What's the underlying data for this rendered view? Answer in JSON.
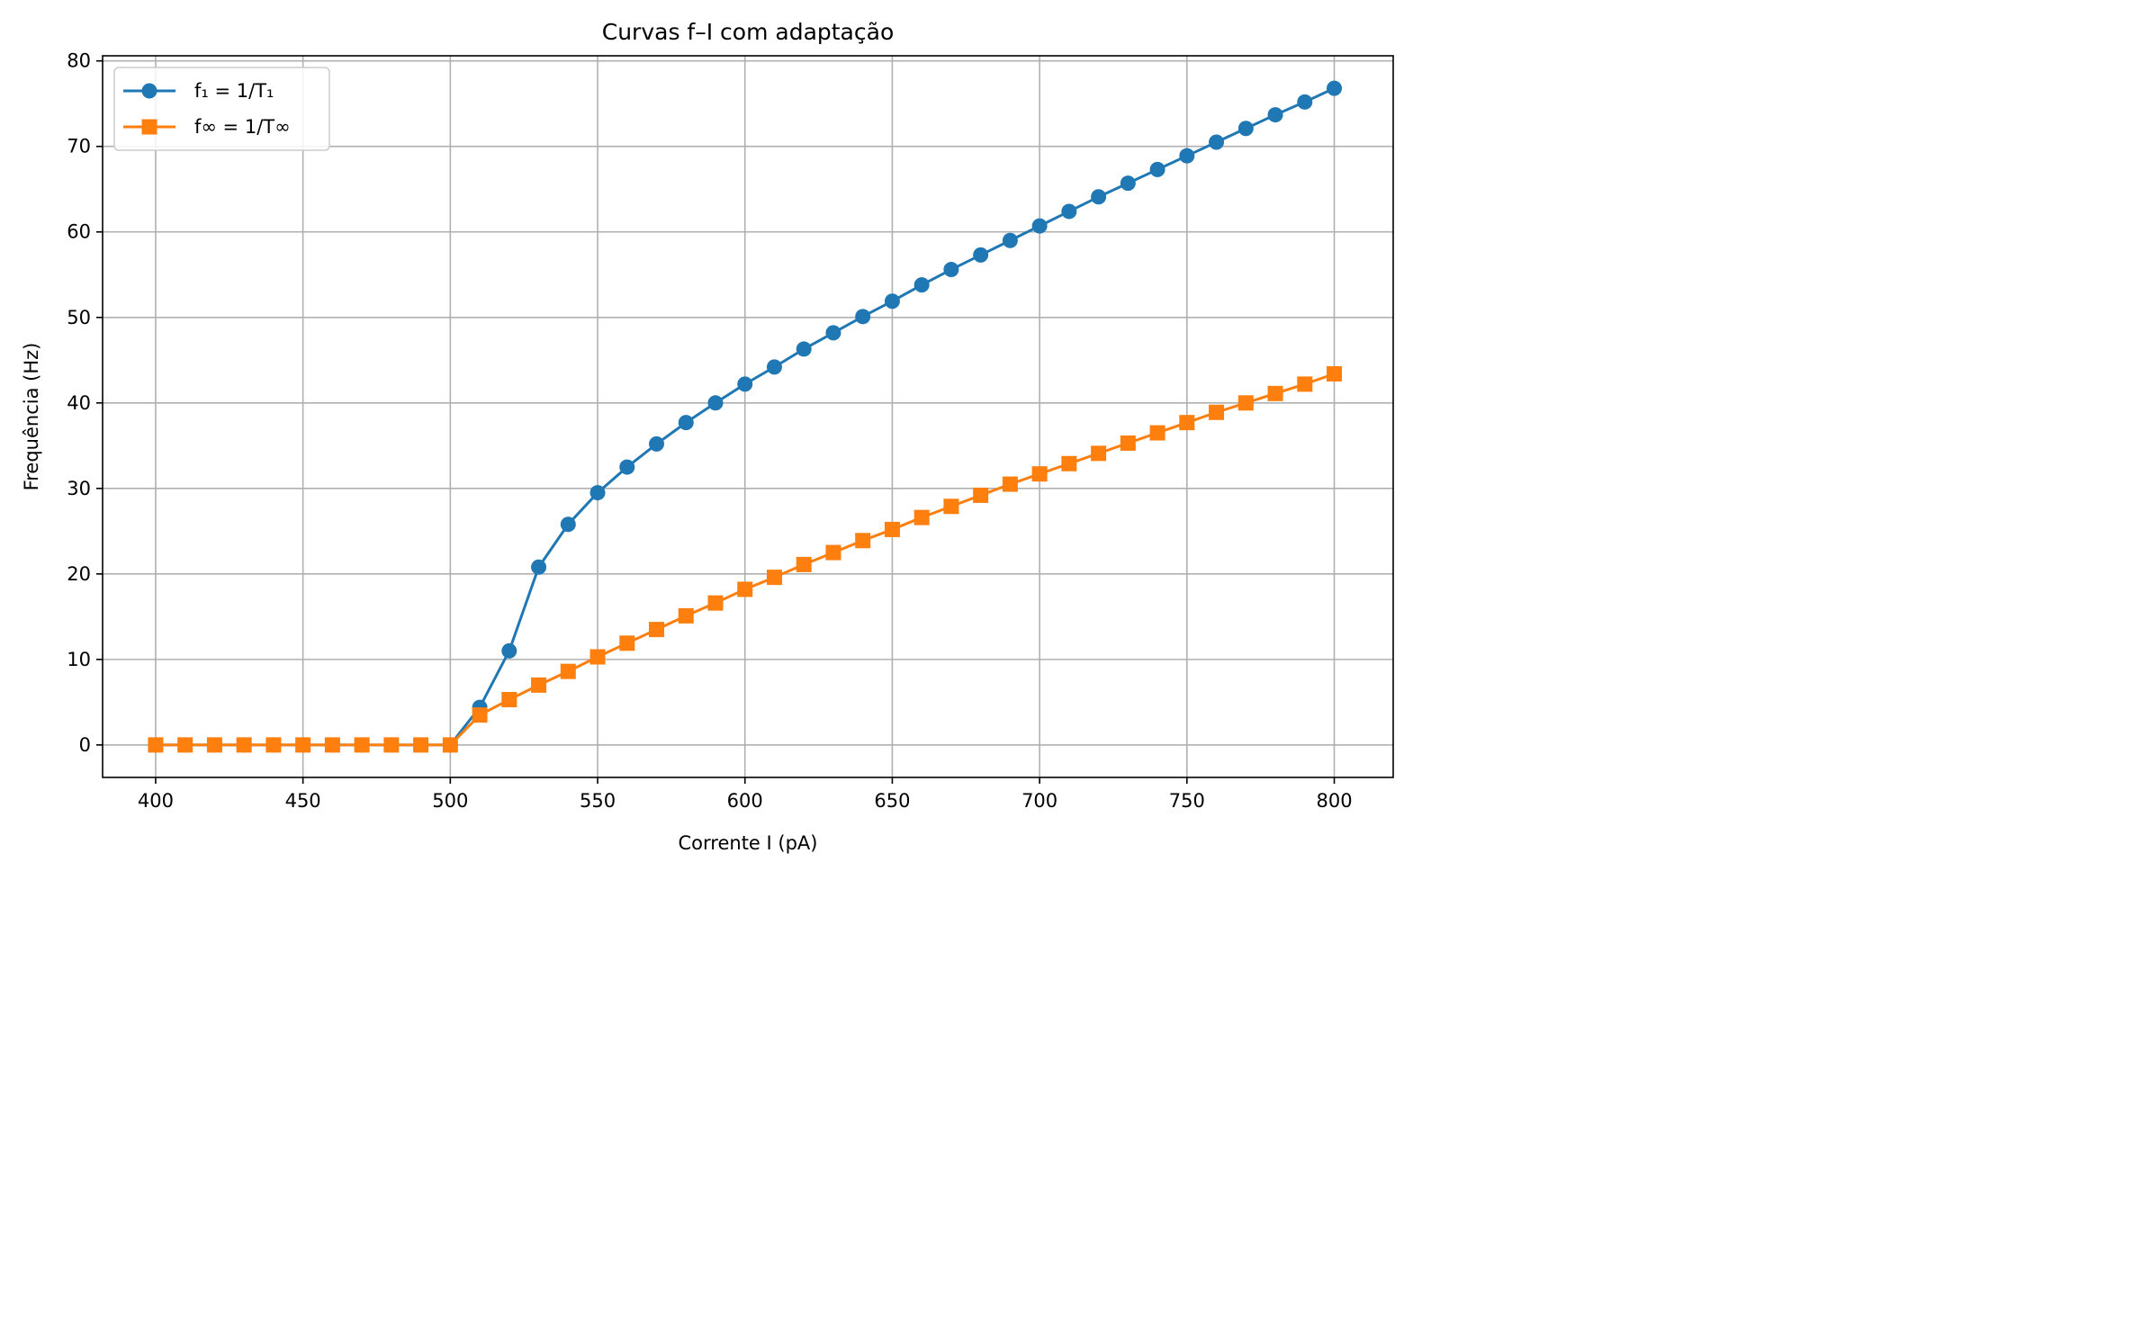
{
  "chart_data": {
    "type": "line",
    "title": "Curvas f–I com adaptação",
    "xlabel": "Corrente I (pA)",
    "ylabel": "Frequência (Hz)",
    "xlim": [
      382,
      820
    ],
    "ylim": [
      -3.8,
      80.6
    ],
    "xticks": [
      400,
      450,
      500,
      550,
      600,
      650,
      700,
      750,
      800
    ],
    "yticks": [
      0,
      10,
      20,
      30,
      40,
      50,
      60,
      70,
      80
    ],
    "grid": true,
    "legend_position": "top-left",
    "x": [
      400,
      410,
      420,
      430,
      440,
      450,
      460,
      470,
      480,
      490,
      500,
      510,
      520,
      530,
      540,
      550,
      560,
      570,
      580,
      590,
      600,
      610,
      620,
      630,
      640,
      650,
      660,
      670,
      680,
      690,
      700,
      710,
      720,
      730,
      740,
      750,
      760,
      770,
      780,
      790,
      800
    ],
    "series": [
      {
        "name": "f₁ = 1/T₁",
        "color": "#1f77b4",
        "marker": "circle",
        "values": [
          0,
          0,
          0,
          0,
          0,
          0,
          0,
          0,
          0,
          0,
          0,
          4.4,
          11.0,
          20.8,
          25.8,
          29.5,
          32.5,
          35.2,
          37.7,
          40.0,
          42.2,
          44.2,
          46.3,
          48.2,
          50.1,
          51.9,
          53.8,
          55.6,
          57.3,
          59.0,
          60.7,
          62.4,
          64.1,
          65.7,
          67.3,
          68.9,
          70.5,
          72.1,
          73.7,
          75.2,
          76.8
        ]
      },
      {
        "name": "f∞ = 1/T∞",
        "color": "#ff7f0e",
        "marker": "square",
        "values": [
          0,
          0,
          0,
          0,
          0,
          0,
          0,
          0,
          0,
          0,
          0,
          3.5,
          5.3,
          7.0,
          8.6,
          10.3,
          11.9,
          13.5,
          15.1,
          16.6,
          18.2,
          19.6,
          21.1,
          22.5,
          23.9,
          25.2,
          26.6,
          27.9,
          29.2,
          30.5,
          31.7,
          32.9,
          34.1,
          35.3,
          36.5,
          37.7,
          38.9,
          40.0,
          41.1,
          42.2,
          43.4
        ]
      }
    ]
  }
}
